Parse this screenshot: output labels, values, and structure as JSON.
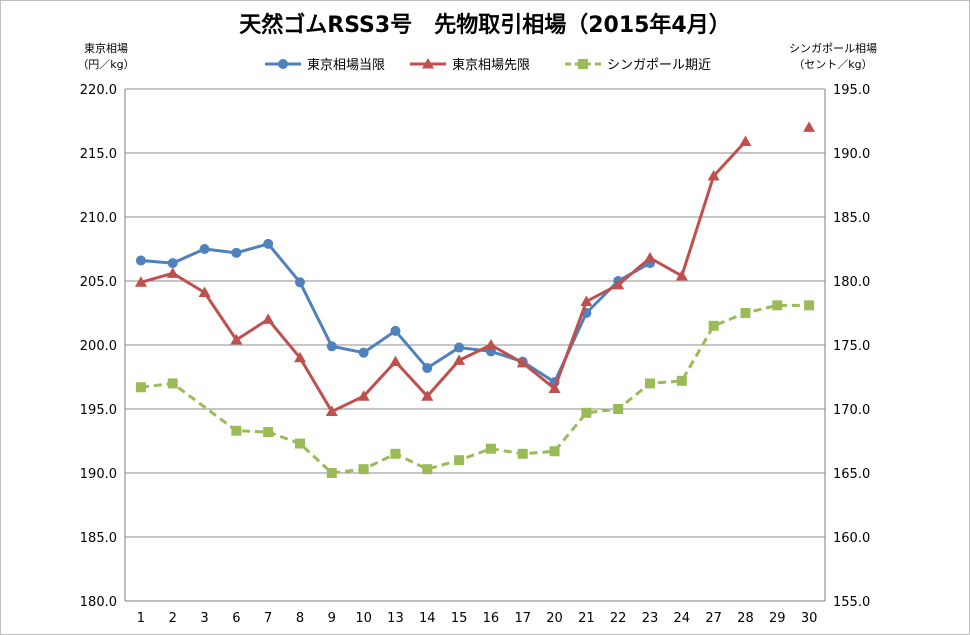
{
  "chart_data": {
    "type": "line",
    "title": "天然ゴムRSS3号　先物取引相場（2015年4月）",
    "left_axis_label": [
      "東京相場",
      "（円／kg）"
    ],
    "right_axis_label": [
      "シンガポール相場",
      "（セント／kg）"
    ],
    "categories": [
      "1",
      "2",
      "3",
      "6",
      "7",
      "8",
      "9",
      "10",
      "13",
      "14",
      "15",
      "16",
      "17",
      "20",
      "21",
      "22",
      "23",
      "24",
      "27",
      "28",
      "29",
      "30"
    ],
    "ylim_left": [
      180,
      220
    ],
    "ylim_right": [
      155,
      195
    ],
    "y_ticks_left": [
      "180.0",
      "185.0",
      "190.0",
      "195.0",
      "200.0",
      "205.0",
      "210.0",
      "215.0",
      "220.0"
    ],
    "y_ticks_right": [
      "155.0",
      "160.0",
      "165.0",
      "170.0",
      "175.0",
      "180.0",
      "185.0",
      "190.0",
      "195.0"
    ],
    "grid": true,
    "legend_position": "top",
    "series": [
      {
        "name": "東京相場当限",
        "axis": "left",
        "color": "#4f81bd",
        "marker": "circle",
        "dash": false,
        "values": [
          206.6,
          206.4,
          207.5,
          207.2,
          207.9,
          204.9,
          199.9,
          199.4,
          201.1,
          198.2,
          199.8,
          199.5,
          198.7,
          197.1,
          202.5,
          205.0,
          206.4,
          null,
          null,
          null,
          null,
          null
        ]
      },
      {
        "name": "東京相場先限",
        "axis": "left",
        "color": "#c0504d",
        "marker": "triangle",
        "dash": false,
        "values": [
          204.9,
          205.6,
          204.1,
          200.4,
          202.0,
          199.0,
          194.8,
          196.0,
          198.7,
          196.0,
          198.8,
          200.0,
          198.6,
          196.6,
          203.4,
          204.7,
          206.8,
          205.4,
          213.2,
          215.9,
          null,
          217.0
        ]
      },
      {
        "name": "シンガポール期近",
        "axis": "right",
        "color": "#9bbb59",
        "marker": "square",
        "dash": true,
        "values": [
          171.7,
          172.0,
          null,
          168.3,
          168.2,
          167.3,
          165.0,
          165.3,
          166.5,
          165.3,
          166.0,
          166.9,
          166.5,
          166.7,
          169.7,
          170.0,
          172.0,
          172.2,
          176.5,
          177.5,
          178.1,
          178.1
        ]
      }
    ]
  }
}
